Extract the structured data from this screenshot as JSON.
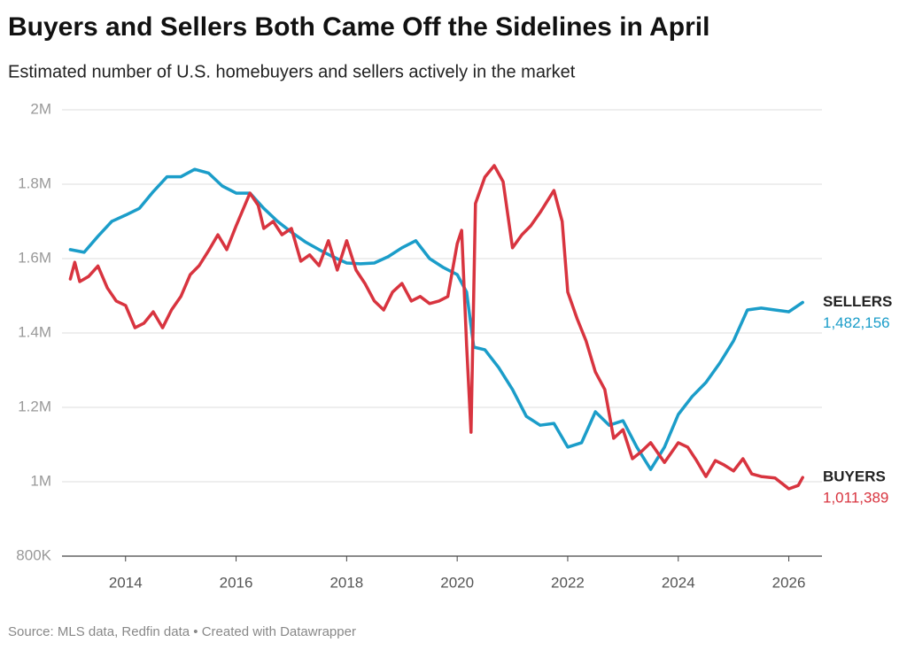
{
  "chart_data": {
    "type": "line",
    "title": "Buyers and Sellers Both Came Off the Sidelines in April",
    "subtitle": "Estimated number of U.S. homebuyers and sellers actively in the market",
    "source": "Source: MLS data, Redfin data • Created with Datawrapper",
    "xlim": [
      2012.85,
      2026.6
    ],
    "xticks": [
      2014,
      2016,
      2018,
      2020,
      2022,
      2024,
      2026
    ],
    "ylim": [
      800000,
      2000000
    ],
    "yticks": [
      {
        "value": 800000,
        "label": "800K"
      },
      {
        "value": 1000000,
        "label": "1M"
      },
      {
        "value": 1200000,
        "label": "1.2M"
      },
      {
        "value": 1400000,
        "label": "1.4M"
      },
      {
        "value": 1600000,
        "label": "1.6M"
      },
      {
        "value": 1800000,
        "label": "1.8M"
      },
      {
        "value": 2000000,
        "label": "2M"
      }
    ],
    "grid": true,
    "series": [
      {
        "name": "SELLERS",
        "color": "#1b9dc9",
        "last_value_label": "1,482,156",
        "x": [
          2013.0,
          2013.25,
          2013.5,
          2013.75,
          2014.0,
          2014.25,
          2014.5,
          2014.75,
          2015.0,
          2015.25,
          2015.5,
          2015.75,
          2016.0,
          2016.25,
          2016.5,
          2016.75,
          2017.0,
          2017.25,
          2017.5,
          2017.75,
          2018.0,
          2018.25,
          2018.5,
          2018.75,
          2019.0,
          2019.25,
          2019.5,
          2019.75,
          2020.0,
          2020.17,
          2020.3,
          2020.5,
          2020.75,
          2021.0,
          2021.25,
          2021.5,
          2021.75,
          2022.0,
          2022.25,
          2022.5,
          2022.75,
          2023.0,
          2023.25,
          2023.5,
          2023.75,
          2024.0,
          2024.25,
          2024.5,
          2024.75,
          2025.0,
          2025.25,
          2025.5,
          2025.75,
          2026.0,
          2026.25
        ],
        "values": [
          1624000,
          1617000,
          1660000,
          1700000,
          1717000,
          1735000,
          1780000,
          1820000,
          1820000,
          1840000,
          1830000,
          1795000,
          1776000,
          1776000,
          1735000,
          1700000,
          1671000,
          1645000,
          1624000,
          1605000,
          1588000,
          1586000,
          1588000,
          1605000,
          1629000,
          1648000,
          1600000,
          1576000,
          1557000,
          1510000,
          1362000,
          1355000,
          1307000,
          1248000,
          1176000,
          1152000,
          1157000,
          1093000,
          1105000,
          1188000,
          1152000,
          1164000,
          1093000,
          1033000,
          1093000,
          1181000,
          1229000,
          1267000,
          1319000,
          1379000,
          1462000,
          1467000,
          1462000,
          1457000,
          1482156
        ]
      },
      {
        "name": "BUYERS",
        "color": "#d8343f",
        "last_value_label": "1,011,389",
        "x": [
          2013.0,
          2013.08,
          2013.17,
          2013.33,
          2013.5,
          2013.67,
          2013.83,
          2014.0,
          2014.17,
          2014.33,
          2014.5,
          2014.67,
          2014.83,
          2015.0,
          2015.17,
          2015.33,
          2015.5,
          2015.67,
          2015.83,
          2016.0,
          2016.25,
          2016.4,
          2016.5,
          2016.67,
          2016.83,
          2017.0,
          2017.17,
          2017.33,
          2017.5,
          2017.67,
          2017.83,
          2018.0,
          2018.17,
          2018.33,
          2018.5,
          2018.67,
          2018.83,
          2019.0,
          2019.17,
          2019.33,
          2019.5,
          2019.67,
          2019.83,
          2020.0,
          2020.08,
          2020.17,
          2020.25,
          2020.33,
          2020.5,
          2020.67,
          2020.83,
          2021.0,
          2021.17,
          2021.33,
          2021.5,
          2021.75,
          2021.9,
          2022.0,
          2022.17,
          2022.33,
          2022.5,
          2022.67,
          2022.83,
          2023.0,
          2023.17,
          2023.33,
          2023.5,
          2023.75,
          2024.0,
          2024.17,
          2024.33,
          2024.5,
          2024.67,
          2024.83,
          2025.0,
          2025.17,
          2025.33,
          2025.5,
          2025.75,
          2026.0,
          2026.17,
          2026.25
        ],
        "values": [
          1545000,
          1590000,
          1538000,
          1552000,
          1580000,
          1521000,
          1486000,
          1474000,
          1414000,
          1426000,
          1457000,
          1414000,
          1462000,
          1498000,
          1557000,
          1581000,
          1621000,
          1664000,
          1624000,
          1688000,
          1776000,
          1743000,
          1681000,
          1700000,
          1664000,
          1681000,
          1593000,
          1610000,
          1581000,
          1648000,
          1569000,
          1648000,
          1569000,
          1533000,
          1486000,
          1462000,
          1510000,
          1533000,
          1486000,
          1498000,
          1479000,
          1486000,
          1498000,
          1640000,
          1676000,
          1367000,
          1133000,
          1748000,
          1819000,
          1850000,
          1807000,
          1629000,
          1664000,
          1688000,
          1724000,
          1783000,
          1700000,
          1510000,
          1438000,
          1379000,
          1295000,
          1248000,
          1117000,
          1140000,
          1062000,
          1081000,
          1105000,
          1052000,
          1105000,
          1093000,
          1057000,
          1014000,
          1057000,
          1045000,
          1029000,
          1062000,
          1021000,
          1014000,
          1010000,
          981000,
          990000,
          1011389
        ]
      }
    ]
  }
}
